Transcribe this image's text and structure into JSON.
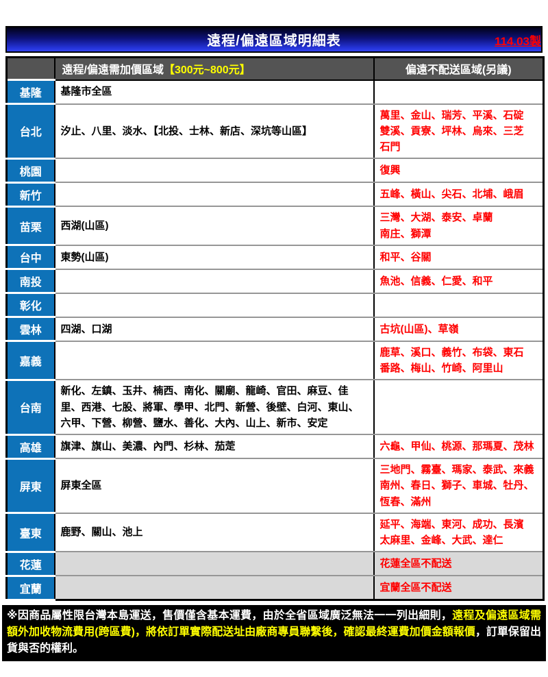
{
  "meta": {
    "version_label": "114.03製"
  },
  "title": "遠程/偏遠區域明細表",
  "colors": {
    "region_blue": "#0e72b8",
    "header_gray": "#545454",
    "shaded_cell_gray": "#d9d9d9",
    "alert_red": "#ff0000",
    "highlight_yellow": "#ffff00",
    "title_gradient_blue": "#2433d8"
  },
  "table": {
    "header": {
      "surcharge_label": "遠程/偏遠需加價區域",
      "surcharge_price_range": "【300元~800元】",
      "no_delivery_label": "偏遠不配送區域(另議)"
    },
    "rows": [
      {
        "region": "基隆",
        "surcharge": "基隆市全區",
        "no_delivery": "",
        "shaded": false
      },
      {
        "region": "台北",
        "surcharge": "汐止、八里、淡水、【北投、士林、新店、深坑等山區】",
        "no_delivery": "萬里、金山、瑞芳、平溪、石碇\n雙溪、貢寮、坪林、烏來、三芝\n石門",
        "shaded": false
      },
      {
        "region": "桃園",
        "surcharge": "",
        "no_delivery": "復興",
        "shaded": false
      },
      {
        "region": "新竹",
        "surcharge": "",
        "no_delivery": "五峰、橫山、尖石、北埔、峨眉",
        "shaded": false
      },
      {
        "region": "苗栗",
        "surcharge": "西湖(山區)",
        "no_delivery": "三灣、大湖、泰安、卓蘭\n南庄、獅潭",
        "shaded": false
      },
      {
        "region": "台中",
        "surcharge": "東勢(山區)",
        "no_delivery": "和平、谷關",
        "shaded": false
      },
      {
        "region": "南投",
        "surcharge": "",
        "no_delivery": "魚池、信義、仁愛、和平",
        "shaded": false
      },
      {
        "region": "彰化",
        "surcharge": "",
        "no_delivery": "",
        "shaded": false
      },
      {
        "region": "雲林",
        "surcharge": "四湖、口湖",
        "no_delivery": "古坑(山區)、草嶺",
        "shaded": false
      },
      {
        "region": "嘉義",
        "surcharge": "",
        "no_delivery": "鹿草、溪口、義竹、布袋、東石\n番路、梅山、竹崎、阿里山",
        "shaded": false
      },
      {
        "region": "台南",
        "surcharge": "新化、左鎮、玉井、楠西、南化、關廟、龍崎、官田、麻豆、佳里、西港、七股、將軍、學甲、北門、新營、後壁、白河、東山、六甲、下營、柳營、鹽水、善化、大內、山上、新市、安定",
        "no_delivery": "",
        "shaded": false
      },
      {
        "region": "高雄",
        "surcharge": "旗津、旗山、美濃、內門、杉林、茄萣",
        "no_delivery": "六龜、甲仙、桃源、那瑪夏、茂林",
        "shaded": false
      },
      {
        "region": "屏東",
        "surcharge": "屏東全區",
        "no_delivery": "三地門、霧臺、瑪家、泰武、來義\n南州、春日、獅子、車城、牡丹、\n恆春、滿州",
        "shaded": false
      },
      {
        "region": "臺東",
        "surcharge": "鹿野、關山、池上",
        "no_delivery": "延平、海端、東河、成功、長濱\n太麻里、金峰、大武、達仁",
        "shaded": false
      },
      {
        "region": "花蓮",
        "surcharge": "",
        "no_delivery": "花蓮全區不配送",
        "shaded": true
      },
      {
        "region": "宜蘭",
        "surcharge": "",
        "no_delivery": "宜蘭全區不配送",
        "shaded": true
      }
    ]
  },
  "footer": {
    "note_part1": "※因商品屬性限台灣本島運送，售價僅含基本運費，由於全省區域廣泛無法一一列出細則，",
    "note_highlight": "遠程及偏遠區域需額外加收物流費用(跨區費)，將依訂單實際配送址由廠商專員聯繫後，確認最終運費加價金額報價",
    "note_part2": "，訂單保留出貨與否的權利。"
  }
}
